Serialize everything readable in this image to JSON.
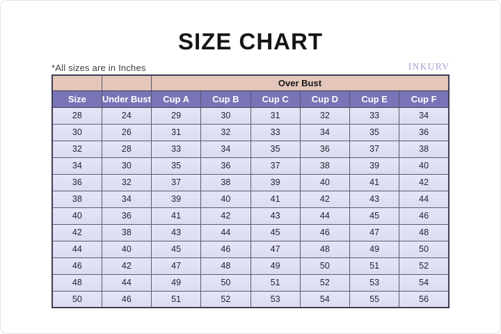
{
  "title": "SIZE CHART",
  "note": "*All sizes are in Inches",
  "brand": "INKURV",
  "chart_data": {
    "type": "table",
    "title": "SIZE CHART",
    "units": "Inches",
    "group_header": {
      "label": "Over Bust",
      "spans_columns": [
        "Cup A",
        "Cup B",
        "Cup C",
        "Cup D",
        "Cup E",
        "Cup F"
      ]
    },
    "columns": [
      "Size",
      "Under Bust",
      "Cup A",
      "Cup B",
      "Cup C",
      "Cup D",
      "Cup E",
      "Cup F"
    ],
    "rows": [
      [
        28,
        24,
        29,
        30,
        31,
        32,
        33,
        34
      ],
      [
        30,
        26,
        31,
        32,
        33,
        34,
        35,
        36
      ],
      [
        32,
        28,
        33,
        34,
        35,
        36,
        37,
        38
      ],
      [
        34,
        30,
        35,
        36,
        37,
        38,
        39,
        40
      ],
      [
        36,
        32,
        37,
        38,
        39,
        40,
        41,
        42
      ],
      [
        38,
        34,
        39,
        40,
        41,
        42,
        43,
        44
      ],
      [
        40,
        36,
        41,
        42,
        43,
        44,
        45,
        46
      ],
      [
        42,
        38,
        43,
        44,
        45,
        46,
        47,
        48
      ],
      [
        44,
        40,
        45,
        46,
        47,
        48,
        49,
        50
      ],
      [
        46,
        42,
        47,
        48,
        49,
        50,
        51,
        52
      ],
      [
        48,
        44,
        49,
        50,
        51,
        52,
        53,
        54
      ],
      [
        50,
        46,
        51,
        52,
        53,
        54,
        55,
        56
      ]
    ]
  },
  "colors": {
    "header_purple": "#7874b5",
    "over_bust_tan": "#e4c7ba",
    "row_lavender": "#dfdff3",
    "brand_purple": "#a8a4d8",
    "border_dark": "#3f3c55"
  }
}
